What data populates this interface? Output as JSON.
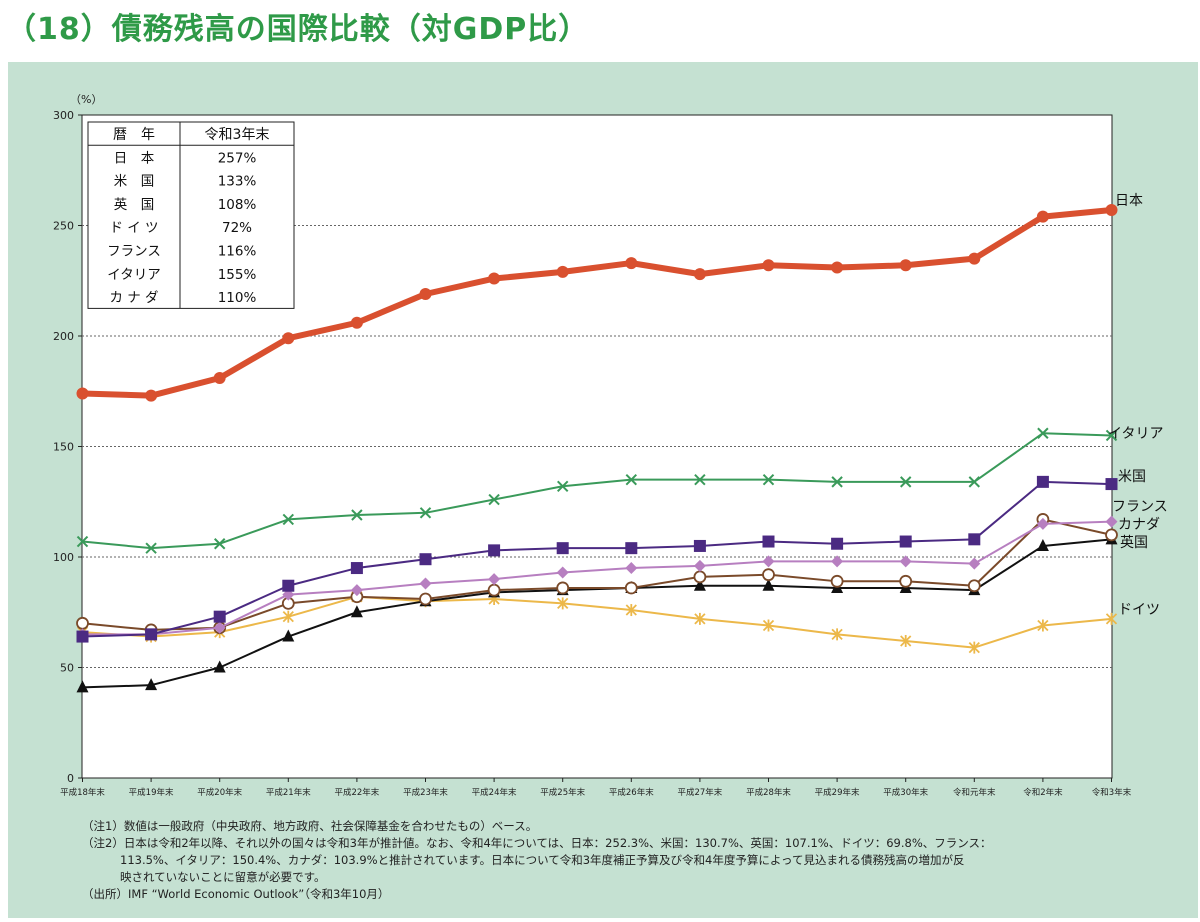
{
  "title": "（18）債務残高の国際比較（対GDP比）",
  "colors": {
    "title": "#2f9a48",
    "panel": "#c5e1d2",
    "japan": "#d9502f",
    "italy": "#3a9a5a",
    "us": "#4b2a82",
    "france": "#b77fc0",
    "canada": "#7a4a2a",
    "uk": "#111111",
    "germany": "#ecb84a"
  },
  "table": {
    "header": [
      "暦　年",
      "令和3年末"
    ],
    "rows": [
      [
        "日　本",
        "257%"
      ],
      [
        "米　国",
        "133%"
      ],
      [
        "英　国",
        "108%"
      ],
      [
        "ド イ ツ",
        "72%"
      ],
      [
        "フランス",
        "116%"
      ],
      [
        "イタリア",
        "155%"
      ],
      [
        "カ ナ ダ",
        "110%"
      ]
    ]
  },
  "chart_data": {
    "type": "line",
    "ylabel": "（%）",
    "ylim": [
      0,
      300
    ],
    "yticks": [
      0,
      50,
      100,
      150,
      200,
      250,
      300
    ],
    "grid": "horizontal dotted",
    "categories": [
      "平成18年末",
      "平成19年末",
      "平成20年末",
      "平成21年末",
      "平成22年末",
      "平成23年末",
      "平成24年末",
      "平成25年末",
      "平成26年末",
      "平成27年末",
      "平成28年末",
      "平成29年末",
      "平成30年末",
      "令和元年末",
      "令和2年末",
      "令和3年末"
    ],
    "series": [
      {
        "name": "日本",
        "key": "japan",
        "marker": "circle",
        "width": 6,
        "values": [
          174,
          173,
          181,
          199,
          206,
          219,
          226,
          229,
          233,
          228,
          232,
          231,
          232,
          235,
          254,
          257
        ]
      },
      {
        "name": "イタリア",
        "key": "italy",
        "marker": "x",
        "width": 2,
        "values": [
          107,
          104,
          106,
          117,
          119,
          120,
          126,
          132,
          135,
          135,
          135,
          134,
          134,
          134,
          156,
          155
        ]
      },
      {
        "name": "米国",
        "key": "us",
        "marker": "square",
        "width": 2,
        "values": [
          64,
          65,
          73,
          87,
          95,
          99,
          103,
          104,
          104,
          105,
          107,
          106,
          107,
          108,
          134,
          133
        ]
      },
      {
        "name": "フランス",
        "key": "france",
        "marker": "diamond",
        "width": 2,
        "values": [
          65,
          65,
          68,
          83,
          85,
          88,
          90,
          93,
          95,
          96,
          98,
          98,
          98,
          97,
          115,
          116
        ]
      },
      {
        "name": "カナダ",
        "key": "canada",
        "marker": "ocircle",
        "width": 2,
        "values": [
          70,
          67,
          68,
          79,
          82,
          81,
          85,
          86,
          86,
          91,
          92,
          89,
          89,
          87,
          117,
          110
        ]
      },
      {
        "name": "英国",
        "key": "uk",
        "marker": "triangle",
        "width": 2,
        "values": [
          41,
          42,
          50,
          64,
          75,
          80,
          84,
          85,
          86,
          87,
          87,
          86,
          86,
          85,
          105,
          108
        ]
      },
      {
        "name": "ドイツ",
        "key": "germany",
        "marker": "star",
        "width": 2,
        "values": [
          66,
          64,
          66,
          73,
          82,
          80,
          81,
          79,
          76,
          72,
          69,
          65,
          62,
          59,
          69,
          72
        ]
      }
    ]
  },
  "notes": [
    "（注1）数値は一般政府（中央政府、地方政府、社会保障基金を合わせたもの）ベース。",
    "（注2）日本は令和2年以降、それ以外の国々は令和3年が推計値。なお、令和4年については、日本：252.3%、米国：130.7%、英国：107.1%、ドイツ：69.8%、フランス：",
    "113.5%、イタリア：150.4%、カナダ：103.9%と推計されています。日本について令和3年度補正予算及び令和4年度予算によって見込まれる債務残高の増加が反",
    "映されていないことに留意が必要です。",
    "（出所）IMF “World Economic Outlook”（令和3年10月）"
  ]
}
